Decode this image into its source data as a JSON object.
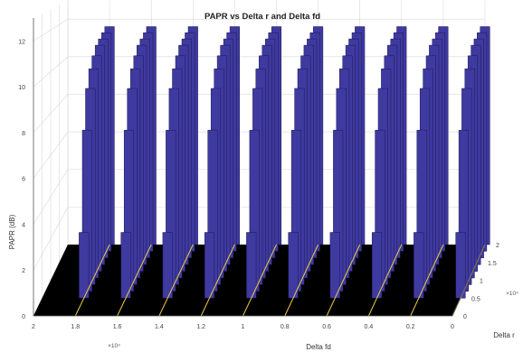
{
  "chart_data": {
    "type": "bar3",
    "title": "PAPR vs Delta r and Delta fd",
    "xlabel": "Delta fd",
    "ylabel": "Delta r",
    "zlabel": "PAPR (dB)",
    "x_ticks": [
      "2",
      "1.8",
      "1.6",
      "1.4",
      "1.2",
      "1",
      "0.8",
      "0.6",
      "0.4",
      "0.2",
      "0"
    ],
    "x_exponent": "×10⁴",
    "y_ticks": [
      "0",
      "0.5",
      "1",
      "1.5",
      "2"
    ],
    "y_exponent": "×10⁴",
    "z_ticks": [
      "0",
      "2",
      "4",
      "6",
      "8",
      "10",
      "12"
    ],
    "xlim": [
      0,
      20000
    ],
    "ylim": [
      0,
      20000
    ],
    "zlim": [
      0,
      13
    ],
    "delta_fd_groups": [
      18000,
      16000,
      14000,
      12000,
      10000,
      8000,
      6000,
      4000,
      2000,
      0
    ],
    "delta_r_start": 5000,
    "delta_r_end": 20000,
    "bars_per_group": 9,
    "papr_db": [
      [
        3.0,
        7.5,
        9.3,
        10.1,
        10.6,
        11.0,
        11.2,
        11.4,
        11.6
      ],
      [
        3.0,
        7.5,
        9.3,
        10.1,
        10.6,
        11.0,
        11.2,
        11.4,
        11.6
      ],
      [
        3.0,
        7.5,
        9.3,
        10.1,
        10.6,
        11.0,
        11.2,
        11.4,
        11.6
      ],
      [
        3.0,
        7.5,
        9.3,
        10.1,
        10.6,
        11.0,
        11.2,
        11.4,
        11.6
      ],
      [
        3.0,
        7.5,
        9.3,
        10.1,
        10.6,
        11.0,
        11.2,
        11.4,
        11.6
      ],
      [
        3.0,
        7.5,
        9.3,
        10.1,
        10.6,
        11.0,
        11.2,
        11.4,
        11.6
      ],
      [
        3.0,
        7.5,
        9.3,
        10.1,
        10.6,
        11.0,
        11.2,
        11.4,
        11.6
      ],
      [
        3.0,
        7.5,
        9.3,
        10.1,
        10.6,
        11.0,
        11.2,
        11.4,
        11.6
      ],
      [
        3.0,
        7.5,
        9.3,
        10.1,
        10.6,
        11.0,
        11.2,
        11.4,
        11.6
      ],
      [
        3.0,
        7.5,
        9.3,
        10.1,
        10.6,
        11.0,
        11.2,
        11.4,
        11.6
      ]
    ],
    "floor_papr_db": 3.0,
    "grid": true,
    "colors": {
      "bar_face": "#3f3aa0",
      "bar_dark": "#1b1850",
      "floor": "#000000",
      "edge_highlight": "#e8c84a",
      "grid": "#d9d9d9",
      "axis": "#5a5a5a"
    }
  }
}
